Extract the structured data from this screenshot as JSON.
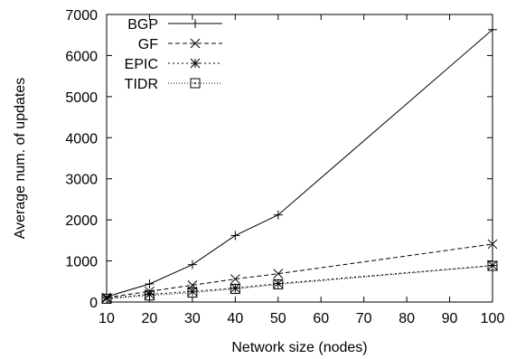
{
  "chart_data": {
    "type": "line",
    "title": "",
    "xlabel": "Network size (nodes)",
    "ylabel": "Average num. of updates",
    "xlim": [
      10,
      100
    ],
    "ylim": [
      0,
      7000
    ],
    "xticks": [
      10,
      20,
      30,
      40,
      50,
      60,
      70,
      80,
      90,
      100
    ],
    "yticks": [
      0,
      1000,
      2000,
      3000,
      4000,
      5000,
      6000,
      7000
    ],
    "grid": false,
    "legend_position": "top-left",
    "x": [
      10,
      20,
      30,
      40,
      50,
      100
    ],
    "series": [
      {
        "name": "BGP",
        "line_style": "solid",
        "marker": "plus",
        "values": [
          130,
          440,
          910,
          1620,
          2120,
          6630
        ]
      },
      {
        "name": "GF",
        "line_style": "dashed",
        "marker": "cross",
        "values": [
          110,
          260,
          410,
          560,
          690,
          1410
        ]
      },
      {
        "name": "EPIC",
        "line_style": "dotted",
        "marker": "asterisk",
        "values": [
          90,
          190,
          260,
          340,
          450,
          890
        ]
      },
      {
        "name": "TIDR",
        "line_style": "dotted-dense",
        "marker": "square-dotted",
        "values": [
          80,
          160,
          230,
          320,
          430,
          880
        ]
      }
    ]
  }
}
